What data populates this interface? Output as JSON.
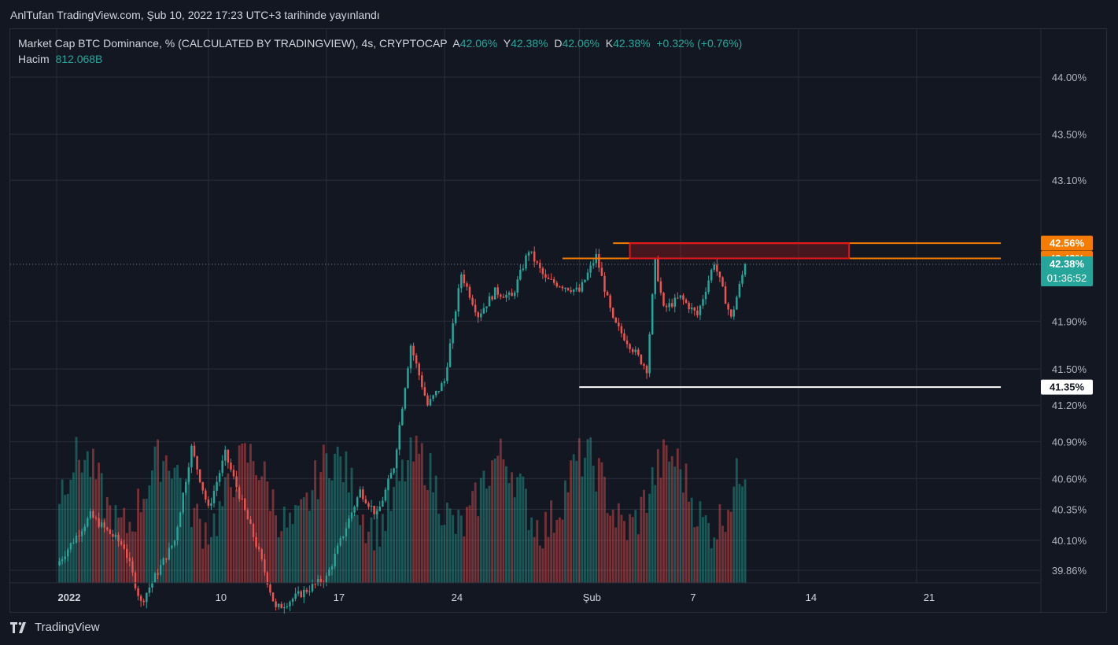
{
  "header": {
    "published_text": "AnlTufan TradingView.com, Şub 10, 2022 17:23 UTC+3 tarihinde yayınlandı"
  },
  "legend": {
    "symbol_text": "Market Cap BTC Dominance, % (CALCULATED BY TRADINGVIEW), 4s, CRYPTOCAP",
    "open_label": "A",
    "open_value": "42.06%",
    "high_label": "Y",
    "high_value": "42.38%",
    "low_label": "D",
    "low_value": "42.06%",
    "close_label": "K",
    "close_value": "42.38%",
    "change_value": "+0.32% (+0.76%)",
    "volume_label": "Hacim",
    "volume_value": "812.068B"
  },
  "footer": {
    "brand": "TradingView"
  },
  "colors": {
    "up": "#26a69a",
    "down": "#ef5350",
    "background": "#131722",
    "grid": "#2a2e39",
    "orange": "#f57c00",
    "zone_red": "#e3161c",
    "white": "#ffffff"
  },
  "chart_data": {
    "type": "candlestick",
    "x_tick_labels": [
      "2022",
      "10",
      "17",
      "24",
      "Şub",
      "7",
      "14",
      "21"
    ],
    "y_tick_labels": [
      "44.00%",
      "43.50%",
      "43.10%",
      "41.90%",
      "41.50%",
      "41.20%",
      "40.90%",
      "40.60%",
      "40.35%",
      "40.10%",
      "39.86%"
    ],
    "y_scale": "log",
    "price_badges": [
      {
        "text": "42.56%",
        "value": 42.56,
        "color": "#f57c00"
      },
      {
        "text": "42.43%",
        "value": 42.43,
        "color": "#f57c00"
      },
      {
        "text": "42.38%",
        "value": 42.38,
        "color": "#26a69a",
        "sub": "01:36:52"
      },
      {
        "text": "41.35%",
        "value": 41.35,
        "color": "#ffffff"
      }
    ],
    "horizontal_lines": [
      {
        "value": 42.56,
        "color": "#f57c00",
        "from": "2022-02-03",
        "to": "2022-02-26"
      },
      {
        "value": 42.43,
        "color": "#f57c00",
        "from": "2022-01-31",
        "to": "2022-02-26"
      },
      {
        "value": 41.35,
        "color": "#ffffff",
        "from": "2022-02-01",
        "to": "2022-02-26"
      }
    ],
    "rectangle": {
      "y_top": 42.56,
      "y_bottom": 42.43,
      "from": "2022-02-04",
      "to": "2022-02-17",
      "color": "#e3161c"
    },
    "last_price": 42.38,
    "volume_last": "812.068B",
    "close_path": [
      [
        "2022-01-01",
        39.9
      ],
      [
        "2022-01-03",
        40.3
      ],
      [
        "2022-01-05",
        40.05
      ],
      [
        "2022-01-06",
        39.6
      ],
      [
        "2022-01-08",
        40.1
      ],
      [
        "2022-01-09",
        40.85
      ],
      [
        "2022-01-10",
        40.35
      ],
      [
        "2022-01-11",
        40.8
      ],
      [
        "2022-01-12",
        40.4
      ],
      [
        "2022-01-13",
        40.0
      ],
      [
        "2022-01-14",
        39.55
      ],
      [
        "2022-01-17",
        39.8
      ],
      [
        "2022-01-19",
        40.5
      ],
      [
        "2022-01-20",
        40.3
      ],
      [
        "2022-01-21",
        40.7
      ],
      [
        "2022-01-22",
        41.7
      ],
      [
        "2022-01-23",
        41.2
      ],
      [
        "2022-01-24",
        41.4
      ],
      [
        "2022-01-25",
        42.3
      ],
      [
        "2022-01-26",
        41.95
      ],
      [
        "2022-01-27",
        42.15
      ],
      [
        "2022-01-28",
        42.1
      ],
      [
        "2022-01-29",
        42.5
      ],
      [
        "2022-01-30",
        42.25
      ],
      [
        "2022-02-01",
        42.15
      ],
      [
        "2022-02-02",
        42.45
      ],
      [
        "2022-02-03",
        41.9
      ],
      [
        "2022-02-04",
        41.7
      ],
      [
        "2022-02-05",
        41.5
      ],
      [
        "2022-02-05T12:00",
        42.4
      ],
      [
        "2022-02-06",
        42.0
      ],
      [
        "2022-02-07",
        42.1
      ],
      [
        "2022-02-08",
        41.95
      ],
      [
        "2022-02-09",
        42.4
      ],
      [
        "2022-02-10",
        41.92
      ],
      [
        "2022-02-10T20:00",
        42.38
      ]
    ]
  }
}
